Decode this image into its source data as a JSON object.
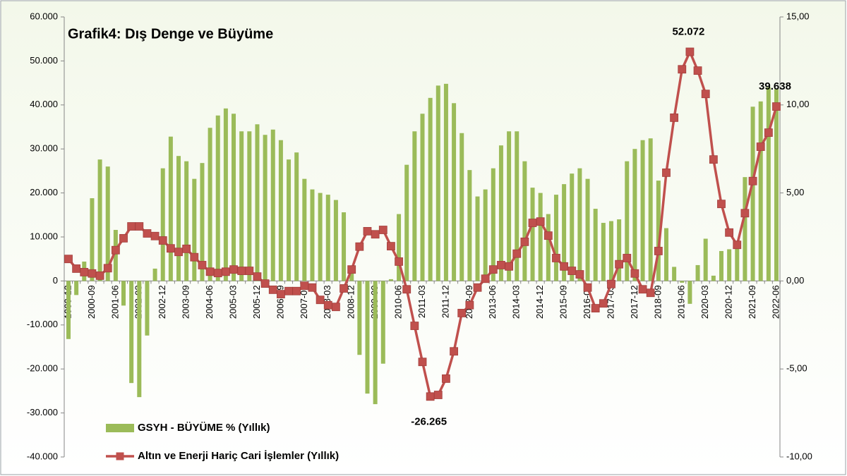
{
  "chart_data": {
    "type": "bar-line",
    "title": "Grafik4: Dış Denge ve Büyüme",
    "categories": [
      "1999-12",
      null,
      null,
      "2000-09",
      null,
      null,
      "2001-06",
      null,
      null,
      "2002-03",
      null,
      null,
      "2002-12",
      null,
      null,
      "2003-09",
      null,
      null,
      "2004-06",
      null,
      null,
      "2005-03",
      null,
      null,
      "2005-12",
      null,
      null,
      "2006-09",
      null,
      null,
      "2007-06",
      null,
      null,
      "2008-03",
      null,
      null,
      "2008-12",
      null,
      null,
      "2009-09",
      null,
      null,
      "2010-06",
      null,
      null,
      "2011-03",
      null,
      null,
      "2011-12",
      null,
      null,
      "2012-09",
      null,
      null,
      "2013-06",
      null,
      null,
      "2014-03",
      null,
      null,
      "2014-12",
      null,
      null,
      "2015-09",
      null,
      null,
      "2016-06",
      null,
      null,
      "2017-03",
      null,
      null,
      "2017-12",
      null,
      null,
      "2018-09",
      null,
      null,
      "2019-06",
      null,
      null,
      "2020-03",
      null,
      null,
      "2020-12",
      null,
      null,
      "2021-09",
      null,
      null,
      "2022-06"
    ],
    "series": [
      {
        "name": "GSYH - BÜYÜME % (Yıllık)",
        "type": "bar",
        "axis": "y2",
        "color": "#9bbb59",
        "values": [
          -3.3,
          -0.8,
          1.1,
          4.7,
          6.9,
          6.5,
          2.9,
          -1.4,
          -5.8,
          -6.6,
          -3.1,
          0.7,
          6.4,
          8.2,
          7.1,
          6.8,
          5.8,
          6.7,
          8.7,
          9.4,
          9.8,
          9.5,
          8.5,
          8.5,
          8.9,
          8.3,
          8.6,
          8.0,
          6.9,
          7.3,
          5.8,
          5.2,
          5.0,
          4.9,
          4.6,
          3.9,
          0.6,
          -4.2,
          -6.4,
          -7.0,
          -4.7,
          0.1,
          3.8,
          6.6,
          8.5,
          9.5,
          10.4,
          11.1,
          11.2,
          10.1,
          8.4,
          6.3,
          4.8,
          5.2,
          6.4,
          7.7,
          8.5,
          8.5,
          6.8,
          5.3,
          5.0,
          3.8,
          4.9,
          5.5,
          6.1,
          6.4,
          5.8,
          4.1,
          3.3,
          3.4,
          3.5,
          6.8,
          7.5,
          8.0,
          8.1,
          5.7,
          3.0,
          0.8,
          -0.1,
          -1.3,
          0.9,
          2.4,
          0.3,
          1.7,
          1.8,
          2.0,
          5.9,
          9.9,
          10.2,
          11.0,
          10.9
        ]
      },
      {
        "name": "Altın ve Enerji Hariç Cari İşlemler (Yıllık)",
        "type": "line",
        "axis": "y",
        "color": "#c0504d",
        "values": [
          5000,
          2800,
          2000,
          1700,
          1200,
          2900,
          7000,
          9700,
          12400,
          12400,
          10800,
          10200,
          9200,
          7400,
          6600,
          7300,
          5400,
          3600,
          2100,
          1800,
          2100,
          2600,
          2300,
          2300,
          1000,
          -600,
          -2000,
          -3000,
          -2300,
          -2300,
          -1100,
          -1500,
          -4300,
          -5500,
          -5900,
          -1700,
          2600,
          7800,
          11300,
          10600,
          11600,
          7900,
          4400,
          -1900,
          -10200,
          -18400,
          -26265,
          -25900,
          -22200,
          -16000,
          -7300,
          -5500,
          -1500,
          500,
          2600,
          3600,
          3300,
          6200,
          8900,
          13200,
          13500,
          10300,
          5200,
          3300,
          2300,
          1500,
          -1500,
          -6200,
          -5100,
          -700,
          3800,
          5200,
          1700,
          -1900,
          -2700,
          6800,
          24600,
          37100,
          48100,
          52072,
          47800,
          42500,
          27600,
          17500,
          11000,
          8200,
          15400,
          22700,
          30500,
          33700,
          39638
        ],
        "value_labels": [
          null,
          null,
          null,
          null,
          null,
          null,
          null,
          null,
          null,
          null,
          null,
          null,
          null,
          null,
          null,
          null,
          null,
          null,
          null,
          null,
          null,
          null,
          null,
          null,
          null,
          null,
          null,
          null,
          null,
          null,
          null,
          null,
          null,
          null,
          null,
          null,
          null,
          null,
          null,
          null,
          null,
          null,
          null,
          null,
          null,
          null,
          "-26.265",
          null,
          null,
          null,
          null,
          null,
          null,
          null,
          null,
          null,
          null,
          null,
          null,
          null,
          null,
          null,
          null,
          null,
          null,
          null,
          null,
          null,
          null,
          null,
          null,
          null,
          null,
          null,
          null,
          null,
          null,
          null,
          null,
          "52.072",
          null,
          null,
          null,
          null,
          null,
          null,
          null,
          null,
          null,
          null,
          "39.638"
        ]
      }
    ],
    "ylim": [
      -40000,
      60000
    ],
    "yticks": [
      {
        "value": -40000,
        "label": "-40.000"
      },
      {
        "value": -30000,
        "label": "-30.000"
      },
      {
        "value": -20000,
        "label": "-20.000"
      },
      {
        "value": -10000,
        "label": "-10.000"
      },
      0,
      {
        "value": 10000,
        "label": "10.000"
      },
      {
        "value": 20000,
        "label": "20.000"
      },
      {
        "value": 30000,
        "label": "30.000"
      },
      {
        "value": 40000,
        "label": "40.000"
      },
      {
        "value": 50000,
        "label": "50.000"
      },
      {
        "value": 60000,
        "label": "60.000"
      }
    ],
    "y2lim": [
      -10,
      15
    ],
    "y2ticks": [
      {
        "value": -10,
        "label": "-10,00"
      },
      {
        "value": -5,
        "label": "-5,00"
      },
      {
        "value": 0,
        "label": "0,00"
      },
      {
        "value": 5,
        "label": "5,00"
      },
      {
        "value": 10,
        "label": "10,00"
      },
      {
        "value": 15,
        "label": "15,00"
      }
    ],
    "grid": false,
    "legend": "bottom-left"
  }
}
